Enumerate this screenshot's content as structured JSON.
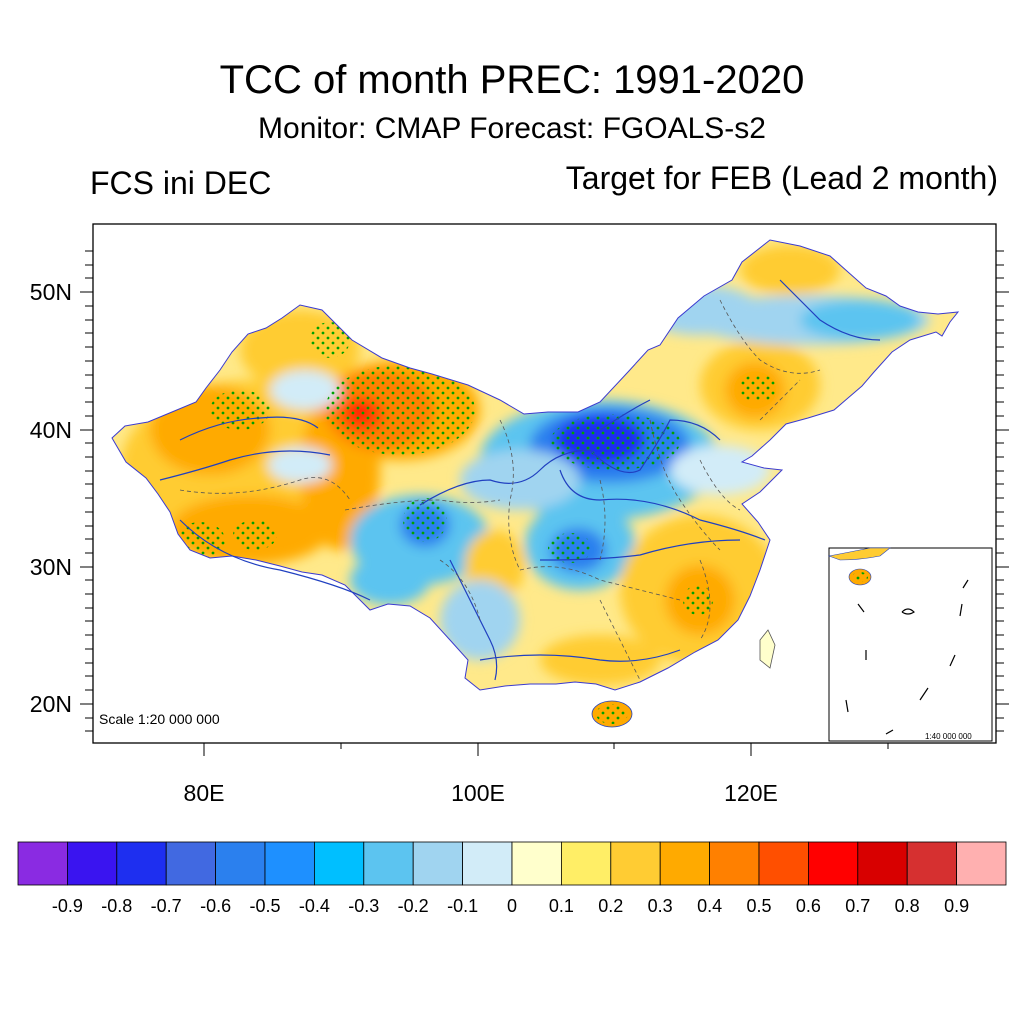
{
  "header": {
    "title": "TCC of month PREC: 1991-2020",
    "subtitle": "Monitor: CMAP   Forecast: FGOALS-s2",
    "left_label": "FCS ini DEC",
    "right_label": "Target for FEB (Lead 2 month)"
  },
  "map": {
    "lat_labels": [
      "50N",
      "40N",
      "30N",
      "20N"
    ],
    "lon_labels": [
      "80E",
      "100E",
      "120E"
    ],
    "scale_text": "Scale 1:20 000 000",
    "inset_scale_text": "1:40 000 000",
    "regions": [
      {
        "name": "north-xinjiang-max",
        "value": 0.7
      },
      {
        "name": "tarim-basin-east",
        "value": 0.5
      },
      {
        "name": "west-tibet",
        "value": 0.3
      },
      {
        "name": "inner-mongolia-min",
        "value": -0.6
      },
      {
        "name": "qinghai-min",
        "value": -0.5
      },
      {
        "name": "sichuan-basin-min",
        "value": -0.4
      },
      {
        "name": "northeast-china-band",
        "value": -0.3
      },
      {
        "name": "southeast-china",
        "value": 0.3
      },
      {
        "name": "hainan",
        "value": 0.4
      }
    ]
  },
  "colorbar": {
    "colors": [
      "#8a2be2",
      "#3a14f0",
      "#1e2ff0",
      "#4169e1",
      "#2b80ee",
      "#1e90ff",
      "#00bfff",
      "#5cc4f0",
      "#a0d4f0",
      "#d2ecf8",
      "#ffffcc",
      "#ffee66",
      "#ffcc33",
      "#ffaa00",
      "#ff8000",
      "#ff4f00",
      "#ff0000",
      "#d80000",
      "#d63030",
      "#ffb0b0"
    ],
    "labels": [
      "-0.9",
      "-0.8",
      "-0.7",
      "-0.6",
      "-0.5",
      "-0.4",
      "-0.3",
      "-0.2",
      "-0.1",
      "0",
      "0.1",
      "0.2",
      "0.3",
      "0.4",
      "0.5",
      "0.6",
      "0.7",
      "0.8",
      "0.9"
    ]
  },
  "colors": {
    "river": "#2040c0",
    "stipple": "#00a000",
    "frame": "#000000"
  }
}
